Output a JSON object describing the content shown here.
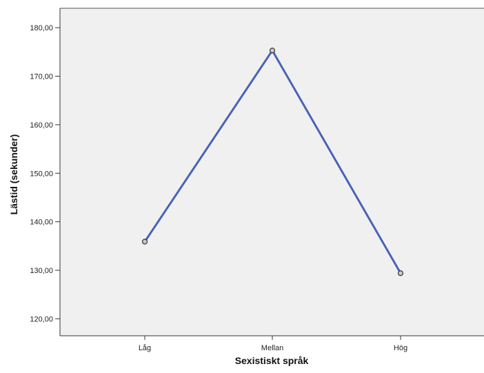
{
  "chart_data": {
    "type": "line",
    "categories": [
      "Låg",
      "Mellan",
      "Hög"
    ],
    "values": [
      135.9,
      175.3,
      129.4
    ],
    "xlabel": "Sexistiskt språk",
    "ylabel": "Lästid (sekunder)",
    "ylim": [
      116.5,
      184
    ],
    "yticks": [
      "120,00",
      "130,00",
      "140,00",
      "150,00",
      "160,00",
      "170,00",
      "180,00"
    ],
    "ytick_values": [
      120,
      130,
      140,
      150,
      160,
      170,
      180
    ],
    "grid": false,
    "colors": {
      "line": "#4a62b5",
      "plot_background": "#f0f0f0",
      "marker_fill": "#c8c8c8"
    }
  }
}
